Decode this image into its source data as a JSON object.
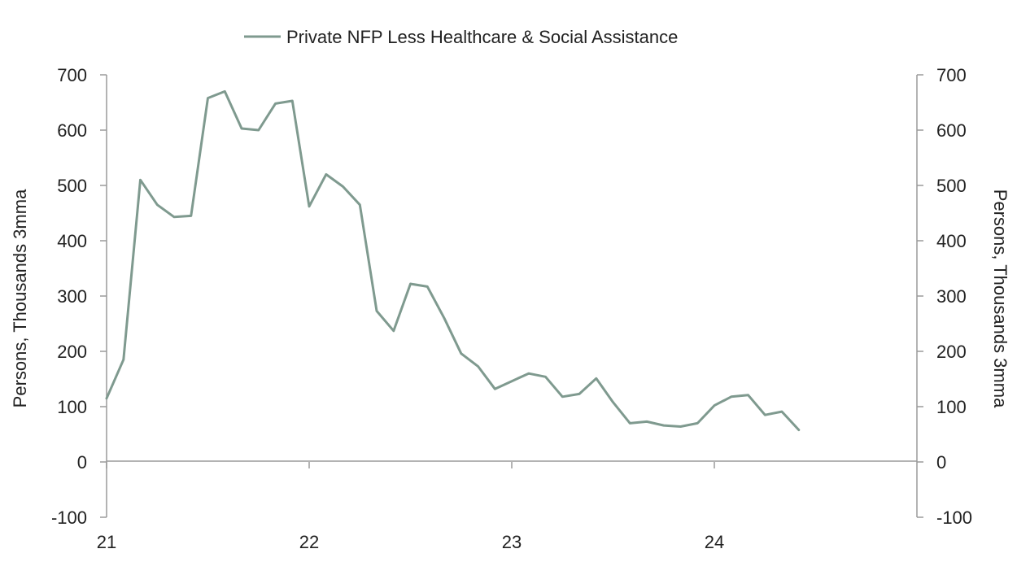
{
  "chart_data": {
    "type": "line",
    "legend_position": "top-center",
    "grid": false,
    "x_axis": {
      "ticks": [
        {
          "value": 0,
          "label": "21"
        },
        {
          "value": 12,
          "label": "22"
        },
        {
          "value": 24,
          "label": "23"
        },
        {
          "value": 36,
          "label": "24"
        }
      ],
      "range": [
        0,
        48
      ]
    },
    "y_left": {
      "label": "Persons, Thousands 3mma",
      "ylim": [
        -100,
        700
      ],
      "ticks": [
        -100,
        0,
        100,
        200,
        300,
        400,
        500,
        600,
        700
      ]
    },
    "y_right": {
      "label": "Persons, Thousands 3mma",
      "ylim": [
        -100,
        700
      ],
      "ticks": [
        -100,
        0,
        100,
        200,
        300,
        400,
        500,
        600,
        700
      ]
    },
    "series": [
      {
        "name": "Private NFP Less Healthcare & Social Assistance",
        "color": "#7f9a8f",
        "x": [
          0,
          1,
          2,
          3,
          4,
          5,
          6,
          7,
          8,
          9,
          10,
          11,
          12,
          13,
          14,
          15,
          16,
          17,
          18,
          19,
          20,
          21,
          22,
          23,
          24,
          25,
          26,
          27,
          28,
          29,
          30,
          31,
          32,
          33,
          34,
          35,
          36,
          37,
          38,
          39,
          40,
          41
        ],
        "values": [
          115,
          185,
          510,
          465,
          443,
          445,
          658,
          670,
          603,
          600,
          648,
          653,
          462,
          520,
          498,
          465,
          273,
          237,
          322,
          317,
          260,
          196,
          173,
          132,
          146,
          160,
          154,
          118,
          123,
          151,
          108,
          70,
          73,
          66,
          64,
          70,
          102,
          118,
          121,
          85,
          91,
          58
        ]
      }
    ]
  }
}
